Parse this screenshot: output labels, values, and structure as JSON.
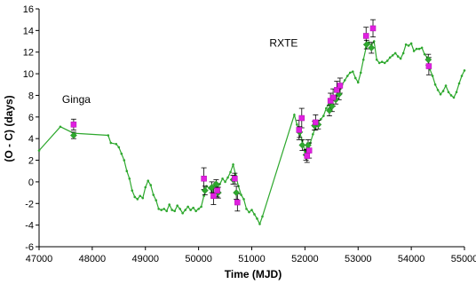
{
  "chart_data": {
    "type": "scatter",
    "xlabel": "Time  (MJD)",
    "ylabel": "(O - C)  (days)",
    "xlim": [
      47000,
      55000
    ],
    "ylim": [
      -6,
      16
    ],
    "x_ticks": [
      "47000",
      "48000",
      "49000",
      "50000",
      "51000",
      "52000",
      "53000",
      "54000",
      "55000"
    ],
    "y_ticks": [
      "-6",
      "-4",
      "-2",
      "0",
      "2",
      "4",
      "6",
      "8",
      "10",
      "12",
      "14",
      "16"
    ],
    "grid": false,
    "legend": "none",
    "annotations": [
      {
        "text": "Ginga",
        "x": 47700,
        "y": 7.3
      },
      {
        "text": "RXTE",
        "x": 51600,
        "y": 12.5
      }
    ],
    "colors": {
      "line": "#2ea82e",
      "green_marker": "#2ea82e",
      "magenta_marker": "#e020e0"
    },
    "series": [
      {
        "type": "line",
        "x": [
          47000,
          47400,
          47650,
          48300,
          48350,
          48450,
          48500,
          48550,
          48600,
          48650,
          48700,
          48750,
          48800,
          48850,
          48900,
          48950,
          49000,
          49050,
          49100,
          49150,
          49200,
          49250,
          49300,
          49350,
          49400,
          49450,
          49500,
          49550,
          49600,
          49650,
          49700,
          49750,
          49800,
          49850,
          49900,
          49950,
          50000,
          50050,
          50100,
          50150,
          50200,
          50250,
          50300,
          50350,
          50400,
          50450,
          50500,
          50550,
          50600,
          50650,
          50700,
          50750,
          50800,
          50850,
          50900,
          50950,
          51000,
          51050,
          51100,
          51150,
          51200,
          51800,
          51850,
          51900,
          51950,
          52000,
          52050,
          52100,
          52150,
          52200,
          52250,
          52300,
          52350,
          52400,
          52450,
          52500,
          52550,
          52600,
          52650,
          52700,
          52750,
          52800,
          52850,
          52900,
          52950,
          53000,
          53050,
          53100,
          53150,
          53200,
          53250,
          53300,
          53350,
          53400,
          53450,
          53500,
          53550,
          53600,
          53650,
          53700,
          53750,
          53800,
          53850,
          53900,
          53950,
          54000,
          54050,
          54100,
          54150,
          54200,
          54250,
          54300,
          54350,
          54400,
          54450,
          54500,
          54550,
          54600,
          54650,
          54700,
          54750,
          54800,
          54850,
          54900,
          54950,
          55000
        ],
        "y": [
          2.9,
          5.1,
          4.5,
          4.3,
          3.6,
          3.5,
          3.2,
          2.6,
          2.0,
          1.0,
          0.3,
          -0.8,
          -1.4,
          -1.6,
          -1.3,
          -1.5,
          -0.5,
          0.1,
          -0.3,
          -1.2,
          -1.7,
          -2.5,
          -2.6,
          -2.5,
          -2.7,
          -2.1,
          -2.6,
          -2.7,
          -2.2,
          -2.5,
          -2.9,
          -2.6,
          -2.3,
          -2.6,
          -2.4,
          -2.7,
          -2.5,
          -2.3,
          -1.3,
          -0.4,
          -0.6,
          -0.9,
          -0.3,
          -0.6,
          -0.2,
          0.3,
          0.0,
          0.4,
          0.9,
          1.6,
          0.6,
          -0.4,
          -1.2,
          -1.6,
          -2.5,
          -2.8,
          -2.6,
          -3.0,
          -3.4,
          -3.9,
          -3.2,
          6.2,
          5.3,
          4.6,
          3.8,
          2.8,
          3.5,
          3.6,
          4.4,
          5.1,
          5.5,
          5.8,
          6.1,
          6.8,
          7.2,
          7.5,
          7.7,
          8.0,
          8.4,
          9.0,
          9.4,
          9.8,
          10.1,
          10.2,
          9.6,
          9.2,
          10.1,
          11.3,
          12.4,
          12.9,
          12.6,
          13.0,
          11.3,
          11.0,
          11.1,
          11.0,
          11.2,
          11.5,
          11.7,
          11.9,
          11.6,
          11.4,
          11.9,
          12.7,
          12.6,
          12.8,
          12.1,
          12.3,
          12.3,
          12.4,
          11.8,
          11.5,
          10.4,
          9.8,
          9.0,
          8.5,
          8.1,
          8.4,
          8.9,
          8.3,
          8.0,
          7.8,
          8.3,
          9.1,
          9.8,
          10.3
        ]
      },
      {
        "type": "scatter",
        "marker": "diamond",
        "x": [
          47650,
          50120,
          50250,
          50330,
          50370,
          50650,
          50710,
          51900,
          51950,
          52020,
          52060,
          52180,
          52250,
          52460,
          52510,
          52580,
          52640,
          53160,
          53250,
          54320
        ],
        "y": [
          4.3,
          -0.8,
          -0.5,
          -0.2,
          -1.0,
          0.2,
          -1.0,
          4.6,
          3.4,
          2.5,
          3.4,
          5.2,
          5.3,
          6.6,
          7.0,
          7.6,
          8.1,
          12.7,
          12.4,
          11.3
        ],
        "yerr": [
          0.3,
          0.4,
          0.5,
          0.4,
          0.5,
          0.4,
          0.6,
          0.5,
          0.5,
          0.5,
          0.5,
          0.4,
          0.4,
          0.5,
          0.5,
          0.4,
          0.5,
          0.4,
          0.5,
          0.5
        ]
      },
      {
        "type": "scatter",
        "marker": "square",
        "x": [
          47650,
          50100,
          50280,
          50350,
          50680,
          50730,
          51890,
          51940,
          52040,
          52080,
          52200,
          52480,
          52530,
          52600,
          52660,
          53150,
          53280,
          54330
        ],
        "y": [
          5.3,
          0.3,
          -1.3,
          -0.8,
          0.3,
          -1.9,
          4.8,
          5.9,
          2.4,
          2.9,
          5.5,
          7.5,
          7.8,
          8.5,
          8.9,
          13.5,
          14.2,
          10.7
        ],
        "yerr": [
          0.5,
          1.0,
          0.8,
          0.6,
          0.5,
          0.8,
          0.9,
          0.9,
          0.6,
          0.7,
          0.7,
          0.7,
          0.8,
          0.8,
          0.7,
          0.8,
          0.8,
          0.8
        ]
      }
    ]
  }
}
